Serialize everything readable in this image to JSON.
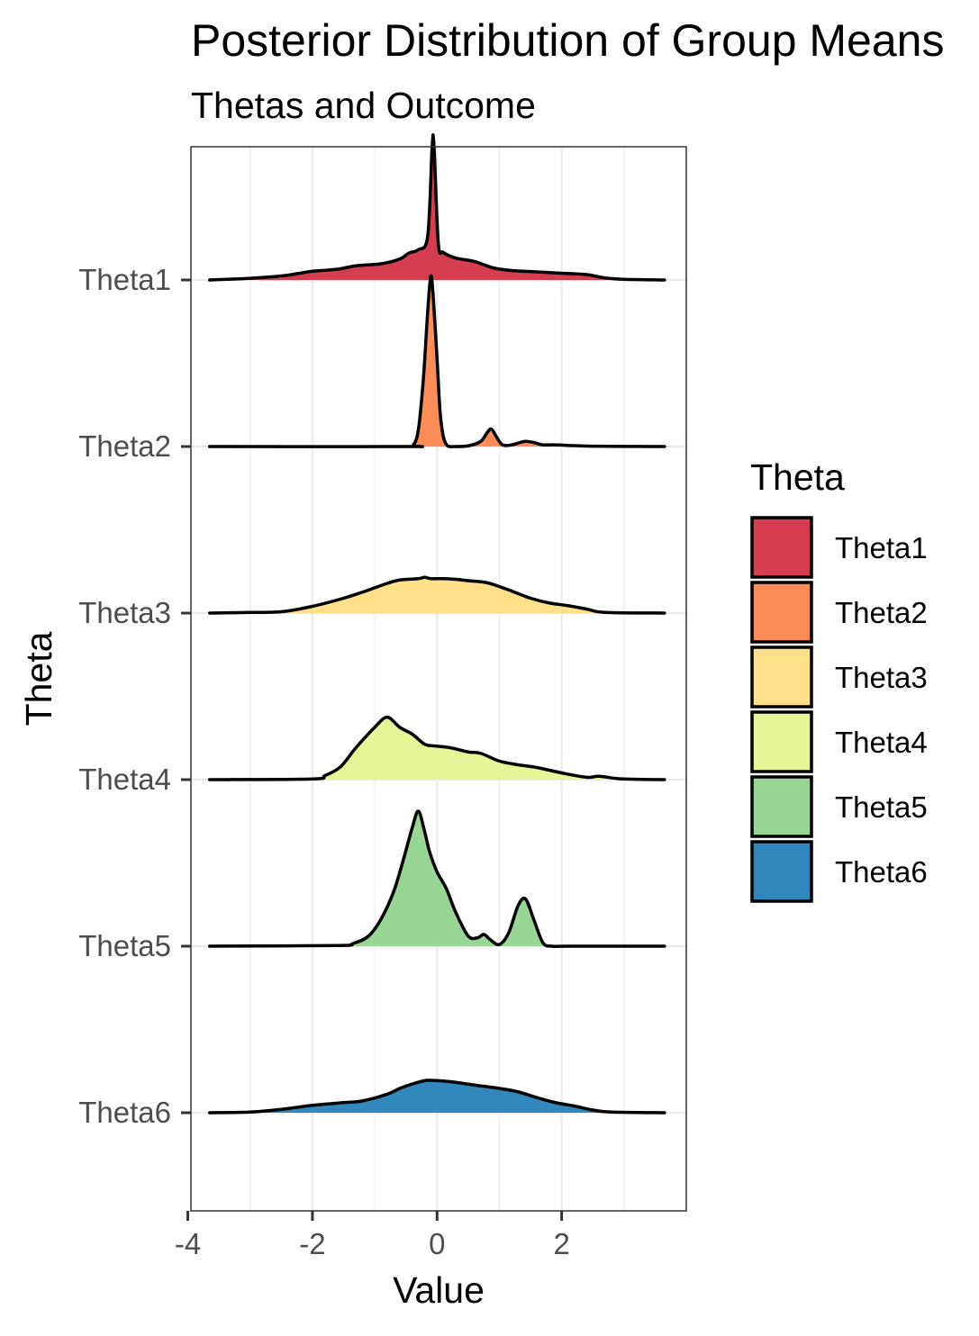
{
  "chart_data": {
    "type": "ridgeline",
    "title": "Posterior Distribution of Group Means",
    "subtitle": "Thetas and Outcome",
    "xlabel": "Value",
    "ylabel": "Theta",
    "xlim": [
      -3.95,
      4.0
    ],
    "xticks": [
      {
        "value": -4,
        "label": "-4"
      },
      {
        "value": -2,
        "label": "-2"
      },
      {
        "value": 0,
        "label": "0"
      },
      {
        "value": 2,
        "label": "2"
      }
    ],
    "grid": true,
    "legend": {
      "title": "Theta",
      "position": "right",
      "entries": [
        "Theta1",
        "Theta2",
        "Theta3",
        "Theta4",
        "Theta5",
        "Theta6"
      ]
    },
    "series": [
      {
        "name": "Theta1",
        "color": "#D53E4F",
        "x": [
          -3.65,
          -3.0,
          -2.5,
          -2.2,
          -2.0,
          -1.6,
          -1.3,
          -0.9,
          -0.6,
          -0.45,
          -0.3,
          -0.15,
          -0.08,
          -0.05,
          0.02,
          0.1,
          0.3,
          0.6,
          0.9,
          1.2,
          1.6,
          2.0,
          2.4,
          2.7,
          3.0,
          3.65
        ],
        "y": [
          0.0,
          0.05,
          0.12,
          0.2,
          0.26,
          0.32,
          0.42,
          0.48,
          0.62,
          0.8,
          0.9,
          1.3,
          3.9,
          4.0,
          1.1,
          0.82,
          0.65,
          0.55,
          0.36,
          0.28,
          0.24,
          0.2,
          0.16,
          0.06,
          0.02,
          0.0
        ]
      },
      {
        "name": "Theta2",
        "color": "#FC8D59",
        "x": [
          -3.65,
          -0.5,
          -0.38,
          -0.3,
          -0.22,
          -0.15,
          -0.1,
          -0.06,
          0.0,
          0.05,
          0.1,
          0.15,
          0.2,
          0.3,
          0.5,
          0.7,
          0.8,
          0.87,
          0.95,
          1.05,
          1.2,
          1.4,
          1.55,
          1.7,
          1.9,
          2.5,
          3.65
        ],
        "y": [
          0.0,
          0.0,
          0.05,
          0.5,
          2.0,
          4.0,
          5.05,
          4.4,
          2.6,
          1.0,
          0.3,
          0.06,
          0.0,
          0.0,
          0.02,
          0.15,
          0.4,
          0.52,
          0.3,
          0.05,
          0.05,
          0.15,
          0.12,
          0.05,
          0.05,
          0.01,
          0.0
        ]
      },
      {
        "name": "Theta3",
        "color": "#FEE08B",
        "x": [
          -3.65,
          -3.0,
          -2.5,
          -2.0,
          -1.5,
          -1.2,
          -1.0,
          -0.8,
          -0.6,
          -0.3,
          -0.2,
          -0.1,
          0.1,
          0.3,
          0.5,
          0.8,
          1.1,
          1.3,
          1.5,
          1.8,
          2.1,
          2.4,
          2.7,
          3.65
        ],
        "y": [
          0.0,
          0.02,
          0.04,
          0.2,
          0.44,
          0.62,
          0.75,
          0.88,
          0.98,
          1.02,
          1.06,
          1.02,
          1.02,
          1.0,
          0.96,
          0.9,
          0.72,
          0.58,
          0.44,
          0.3,
          0.22,
          0.12,
          0.02,
          0.0
        ]
      },
      {
        "name": "Theta4",
        "color": "#E6F598",
        "x": [
          -3.65,
          -2.0,
          -1.8,
          -1.55,
          -1.3,
          -1.0,
          -0.8,
          -0.6,
          -0.4,
          -0.2,
          -0.05,
          0.2,
          0.5,
          0.7,
          1.0,
          1.3,
          1.6,
          2.0,
          2.4,
          2.6,
          2.9,
          3.2,
          3.65
        ],
        "y": [
          0.0,
          0.02,
          0.12,
          0.38,
          0.95,
          1.55,
          1.85,
          1.55,
          1.35,
          1.05,
          1.0,
          0.95,
          0.82,
          0.78,
          0.55,
          0.44,
          0.36,
          0.2,
          0.07,
          0.1,
          0.03,
          0.01,
          0.0
        ]
      },
      {
        "name": "Theta5",
        "color": "#99D594",
        "x": [
          -3.65,
          -1.6,
          -1.35,
          -1.1,
          -0.9,
          -0.7,
          -0.55,
          -0.4,
          -0.3,
          -0.2,
          -0.12,
          0.0,
          0.15,
          0.3,
          0.5,
          0.65,
          0.75,
          0.85,
          1.0,
          1.15,
          1.3,
          1.42,
          1.55,
          1.7,
          1.85,
          2.1,
          3.65
        ],
        "y": [
          0.0,
          0.02,
          0.08,
          0.3,
          0.8,
          1.6,
          2.5,
          3.5,
          4.0,
          3.4,
          2.8,
          2.2,
          1.7,
          1.0,
          0.3,
          0.25,
          0.35,
          0.2,
          0.05,
          0.4,
          1.2,
          1.4,
          0.8,
          0.1,
          0.0,
          0.0,
          0.0
        ]
      },
      {
        "name": "Theta6",
        "color": "#3288BD",
        "x": [
          -3.65,
          -3.0,
          -2.5,
          -2.0,
          -1.5,
          -1.2,
          -0.8,
          -0.6,
          -0.4,
          -0.2,
          -0.1,
          0.1,
          0.3,
          0.6,
          1.0,
          1.3,
          1.6,
          1.9,
          2.2,
          2.5,
          2.8,
          3.65
        ],
        "y": [
          0.0,
          0.02,
          0.1,
          0.22,
          0.3,
          0.35,
          0.55,
          0.72,
          0.85,
          0.95,
          0.96,
          0.94,
          0.9,
          0.82,
          0.72,
          0.62,
          0.45,
          0.3,
          0.2,
          0.08,
          0.02,
          0.0
        ]
      }
    ]
  }
}
